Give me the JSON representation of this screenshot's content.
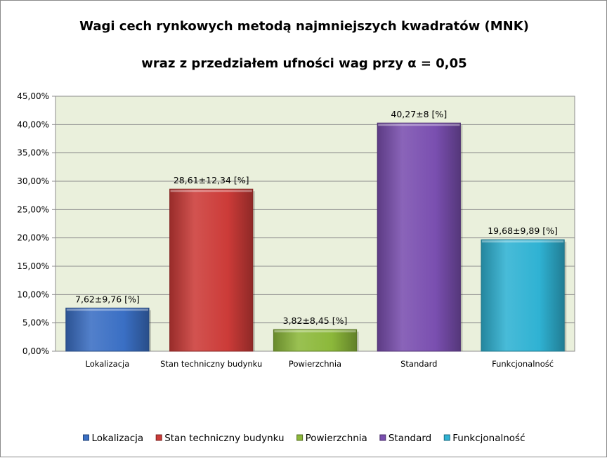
{
  "chart_data": {
    "type": "bar",
    "title": "Wagi cech rynkowych metodą najmniejszych kwadratów (MNK)",
    "subtitle": "wraz z przedziałem ufności wag  przy α = 0,05",
    "categories": [
      "Lokalizacja",
      "Stan techniczny budynku",
      "Powierzchnia",
      "Standard",
      "Funkcjonalność"
    ],
    "values": [
      7.62,
      28.61,
      3.82,
      40.27,
      19.68
    ],
    "data_labels": [
      "7,62±9,76 [%]",
      "28,61±12,34 [%]",
      "3,82±8,45 [%]",
      "40,27±8 [%]",
      "19,68±9,89 [%]"
    ],
    "colors": [
      "#3a6fc4",
      "#cc3b38",
      "#8cb83a",
      "#7a4fb0",
      "#2fb2d3"
    ],
    "ylim": [
      0,
      45
    ],
    "yticks": [
      "0,00%",
      "5,00%",
      "10,00%",
      "15,00%",
      "20,00%",
      "25,00%",
      "30,00%",
      "35,00%",
      "40,00%",
      "45,00%"
    ],
    "grid": true,
    "plot_background": "#eaf0dc",
    "legend_position": "bottom"
  }
}
